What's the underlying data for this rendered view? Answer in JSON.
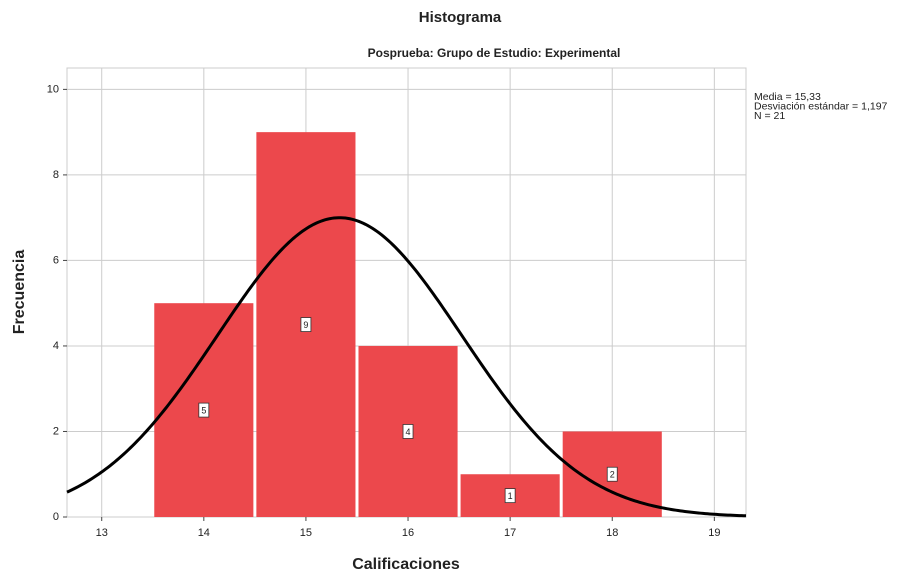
{
  "chart_data": {
    "type": "histogram",
    "title": "Histograma",
    "subtitle": "Posprueba: Grupo de Estudio: Experimental",
    "xlabel": "Calificaciones",
    "ylabel": "Frecuencia",
    "bins": [
      13.5,
      14.5,
      15.5,
      16.5,
      17.5,
      18.5
    ],
    "values": [
      5,
      9,
      4,
      1,
      2
    ],
    "color": "#ec484c",
    "xlim": [
      12.66,
      19.31
    ],
    "xticks": [
      13,
      14,
      15,
      16,
      17,
      18,
      19
    ],
    "ylim": [
      0,
      10.5
    ],
    "yticks": [
      0,
      2,
      4,
      6,
      8,
      10
    ],
    "grid": true,
    "stats": [
      {
        "value": 15.33,
        "label": "Media = 15,33"
      },
      {
        "value": 1.197,
        "label": "Desviación estándar = 1,197"
      },
      {
        "value": 21,
        "label": "N = 21"
      }
    ]
  }
}
